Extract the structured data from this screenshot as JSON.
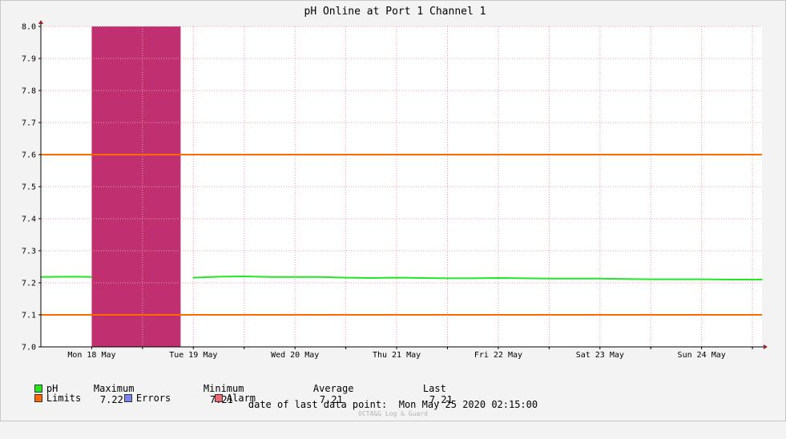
{
  "chart_data": {
    "type": "line",
    "title": "pH Online at Port 1 Channel 1",
    "xlabel": "",
    "ylabel": "",
    "ylim": [
      7.0,
      8.0
    ],
    "y_ticks": [
      "7.0",
      "7.1",
      "7.2",
      "7.3",
      "7.4",
      "7.5",
      "7.6",
      "7.7",
      "7.8",
      "7.9",
      "8.0"
    ],
    "xlim": [
      "2020-05-18T00:00",
      "2020-05-25T02:15"
    ],
    "x_ticks": [
      "Mon 18 May",
      "Tue 19 May",
      "Wed 20 May",
      "Thu 21 May",
      "Fri 22 May",
      "Sat 23 May",
      "Sun 24 May"
    ],
    "x_tick_times": [
      "2020-05-18T12:00",
      "2020-05-19T12:00",
      "2020-05-20T12:00",
      "2020-05-21T12:00",
      "2020-05-22T12:00",
      "2020-05-23T12:00",
      "2020-05-24T12:00"
    ],
    "grid": true,
    "series": [
      {
        "name": "pH",
        "color": "#22e822",
        "points": [
          [
            "2020-05-18T00:00",
            7.218
          ],
          [
            "2020-05-18T08:00",
            7.219
          ],
          [
            "2020-05-18T12:00",
            7.218
          ],
          [
            "2020-05-19T12:00",
            7.216
          ],
          [
            "2020-05-19T18:00",
            7.219
          ],
          [
            "2020-05-20T00:00",
            7.22
          ],
          [
            "2020-05-20T06:00",
            7.218
          ],
          [
            "2020-05-20T12:00",
            7.218
          ],
          [
            "2020-05-20T18:00",
            7.218
          ],
          [
            "2020-05-21T00:00",
            7.216
          ],
          [
            "2020-05-21T06:00",
            7.215
          ],
          [
            "2020-05-21T12:00",
            7.216
          ],
          [
            "2020-05-21T18:00",
            7.215
          ],
          [
            "2020-05-22T00:00",
            7.214
          ],
          [
            "2020-05-22T06:00",
            7.214
          ],
          [
            "2020-05-22T12:00",
            7.215
          ],
          [
            "2020-05-22T18:00",
            7.214
          ],
          [
            "2020-05-23T00:00",
            7.213
          ],
          [
            "2020-05-23T06:00",
            7.213
          ],
          [
            "2020-05-23T12:00",
            7.213
          ],
          [
            "2020-05-23T18:00",
            7.212
          ],
          [
            "2020-05-24T00:00",
            7.211
          ],
          [
            "2020-05-24T06:00",
            7.211
          ],
          [
            "2020-05-24T12:00",
            7.211
          ],
          [
            "2020-05-24T18:00",
            7.21
          ],
          [
            "2020-05-25T02:15",
            7.21
          ]
        ]
      }
    ],
    "limits": {
      "name": "Limits",
      "color": "#ff6a00",
      "values": [
        7.1,
        7.6
      ]
    },
    "alarm_periods": [
      {
        "name": "Alarm",
        "color": "#c03070",
        "start": "2020-05-18T12:00",
        "end": "2020-05-19T09:00"
      }
    ],
    "legend": {
      "placement": "bottom-left",
      "entries": [
        {
          "label": "pH",
          "color": "#22e822"
        },
        {
          "label": "Limits",
          "color": "#ff6a00"
        },
        {
          "label": "Errors",
          "color": "#7b82f0"
        },
        {
          "label": "Alarm",
          "color": "#f06a70"
        }
      ],
      "stats": {
        "maximum_label": "Maximum",
        "maximum_value": "7.22",
        "minimum_label": "Minimum",
        "minimum_value": "7.21",
        "average_label": "Average",
        "average_value": "7.21",
        "last_label": "Last",
        "last_value": "7.21"
      }
    },
    "footer": {
      "last_point_label": "date of last data point:",
      "last_point_value": "Mon May 25 2020 02:15:00",
      "watermark": "OCTA&G Log & Guard"
    }
  }
}
